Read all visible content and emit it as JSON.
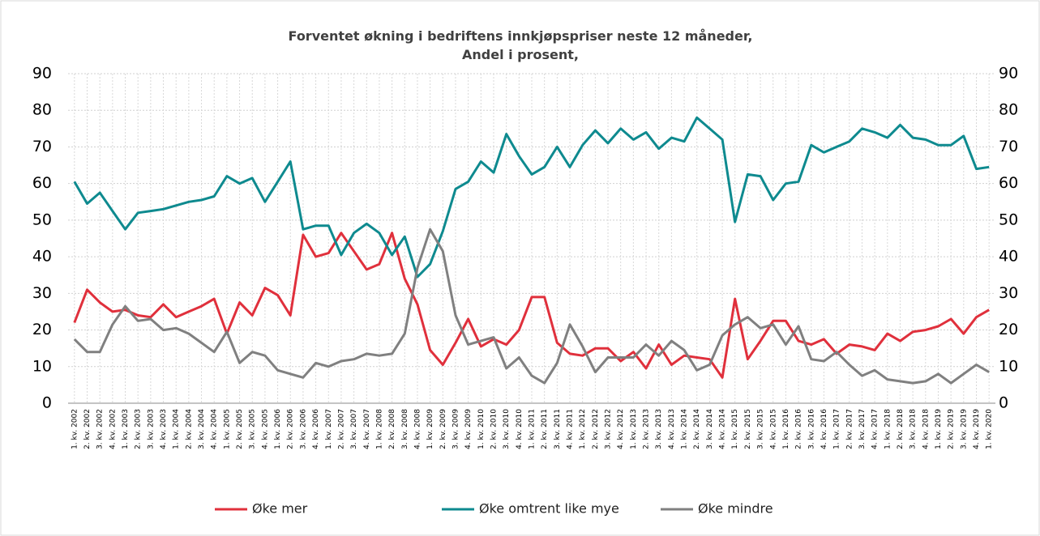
{
  "chart_data": {
    "type": "line",
    "title": [
      "Forventet økning i bedriftens innkjøpspriser neste 12 måneder,",
      "Andel i prosent,"
    ],
    "categories": [
      "1. kv. 2002",
      "2. kv. 2002",
      "3. kv. 2002",
      "4. kv. 2002",
      "1. kv. 2003",
      "2. kv. 2003",
      "3. kv. 2003",
      "4. kv. 2003",
      "1. kv. 2004",
      "2. kv. 2004",
      "3. kv. 2004",
      "4. kv. 2004",
      "1. kv. 2005",
      "2. kv. 2005",
      "3. kv. 2005",
      "4. kv. 2005",
      "1. kv. 2006",
      "2. kv. 2006",
      "3. kv. 2006",
      "4. kv. 2006",
      "1. kv. 2007",
      "2. kv. 2007",
      "3. kv. 2007",
      "4. kv. 2007",
      "1. kv. 2008",
      "2. kv. 2008",
      "3. kv. 2008",
      "4. kv. 2008",
      "1. kv. 2009",
      "2. kv. 2009",
      "3. kv. 2009",
      "4. kv. 2009",
      "1. kv. 2010",
      "2. kv. 2010",
      "3. kv. 2010",
      "4. kv. 2010",
      "1. kv. 2011",
      "2. kv. 2011",
      "3. kv. 2011",
      "4. kv. 2011",
      "1. kv. 2012",
      "2. kv. 2012",
      "3. kv. 2012",
      "4. kv. 2012",
      "1. kv. 2013",
      "2. kv. 2013",
      "3. kv. 2013",
      "4. kv. 2013",
      "1. kv. 2014",
      "2. kv. 2014",
      "3. kv. 2014",
      "4. kv. 2014",
      "1. kv. 2015",
      "2. kv. 2015",
      "3. kv. 2015",
      "4. kv. 2015",
      "1. kv. 2016",
      "2. kv. 2016",
      "3. kv. 2016",
      "4. kv. 2016",
      "1. kv. 2017",
      "2. kv. 2017",
      "3. kv. 2017",
      "4. kv. 2017",
      "1. kv. 2018",
      "2. kv. 2018",
      "3. kv. 2018",
      "4. kv. 2018",
      "1. kv. 2019",
      "2. kv. 2019",
      "3. kv. 2019",
      "4. kv. 2019",
      "1. kv. 2020"
    ],
    "series": [
      {
        "name": "Øke mer",
        "color": "#e0303c",
        "values": [
          22,
          31,
          27.5,
          25,
          25.5,
          24,
          23.5,
          27,
          23.5,
          25,
          26.5,
          28.5,
          19,
          27.5,
          24,
          31.5,
          29.5,
          24,
          46,
          40,
          41,
          46.5,
          41.5,
          36.5,
          38,
          46.5,
          34,
          27,
          14.5,
          10.5,
          16.5,
          23,
          15.5,
          17.5,
          16,
          20,
          29,
          29,
          16.5,
          13.5,
          13,
          15,
          15,
          11.5,
          14,
          9.5,
          16,
          10.5,
          13,
          12.5,
          12,
          7,
          28.5,
          12,
          17,
          22.5,
          22.5,
          17,
          16,
          17.5,
          13.5,
          16,
          15.5,
          14.5,
          19,
          17,
          19.5,
          20,
          21,
          23,
          19,
          23.5,
          25.5
        ]
      },
      {
        "name": "Øke omtrent like mye",
        "color": "#0e8a8f",
        "values": [
          60.5,
          54.5,
          57.5,
          52.5,
          47.5,
          52,
          52.5,
          53,
          54,
          55,
          55.5,
          56.5,
          62,
          60,
          61.5,
          55,
          60.5,
          66,
          47.5,
          48.5,
          48.5,
          40.5,
          46.5,
          49,
          46.5,
          40.5,
          45.5,
          34.5,
          38,
          47,
          58.5,
          60.5,
          66,
          63,
          73.5,
          67.5,
          62.5,
          64.5,
          70,
          64.5,
          70.5,
          74.5,
          71,
          75,
          72,
          74,
          69.5,
          72.5,
          71.5,
          78,
          75,
          72,
          49.5,
          62.5,
          62,
          55.5,
          60,
          60.5,
          70.5,
          68.5,
          70,
          71.5,
          75,
          74,
          72.5,
          76,
          72.5,
          72,
          70.5,
          70.5,
          73,
          64,
          64.5
        ]
      },
      {
        "name": "Øke mindre",
        "color": "#808080",
        "values": [
          17.5,
          14,
          14,
          21.5,
          26.5,
          22.5,
          23,
          20,
          20.5,
          19,
          16.5,
          14,
          19.5,
          11,
          14,
          13,
          9,
          8,
          7,
          11,
          10,
          11.5,
          12,
          13.5,
          13,
          13.5,
          19,
          37,
          47.5,
          41.5,
          24,
          16,
          17,
          18,
          9.5,
          12.5,
          7.5,
          5.5,
          11,
          21.5,
          15.5,
          8.5,
          12.5,
          12.5,
          12.5,
          16,
          13,
          17,
          14.5,
          9,
          10.5,
          18.5,
          21.5,
          23.5,
          20.5,
          21.5,
          16,
          21,
          12,
          11.5,
          14,
          10.5,
          7.5,
          9,
          6.5,
          6,
          5.5,
          6,
          8,
          5.5,
          8,
          10.5,
          8.5
        ]
      }
    ],
    "ylim": [
      0,
      90
    ],
    "yticks": [
      0,
      10,
      20,
      30,
      40,
      50,
      60,
      70,
      80,
      90
    ],
    "y2lim": [
      0,
      90
    ],
    "y2ticks": [
      0,
      10,
      20,
      30,
      40,
      50,
      60,
      70,
      80,
      90
    ],
    "grid": true
  }
}
